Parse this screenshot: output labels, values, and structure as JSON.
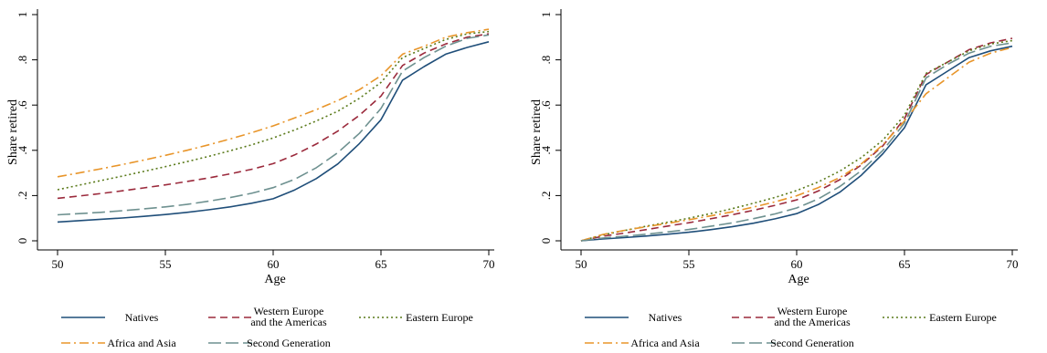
{
  "colors": {
    "natives": "#1f4e79",
    "western_europe": "#9b2a3c",
    "eastern_europe": "#5a7a1a",
    "africa_asia": "#e8952a",
    "second_gen": "#6e9190"
  },
  "chart_data": [
    {
      "type": "line",
      "xlabel": "Age",
      "ylabel": "Share retired",
      "xlim": [
        50,
        70
      ],
      "ylim": [
        0,
        1
      ],
      "xticks": [
        "50",
        "55",
        "60",
        "65",
        "70"
      ],
      "yticks": [
        "0",
        ".2",
        ".4",
        ".6",
        ".8",
        "1"
      ],
      "legend_position": "bottom",
      "x": [
        50,
        51,
        52,
        53,
        54,
        55,
        56,
        57,
        58,
        59,
        60,
        61,
        62,
        63,
        64,
        65,
        66,
        67,
        68,
        69,
        70
      ],
      "series": [
        {
          "key": "natives",
          "name": "Natives",
          "dash": "",
          "values": [
            0.083,
            0.089,
            0.095,
            0.101,
            0.108,
            0.116,
            0.126,
            0.137,
            0.15,
            0.166,
            0.186,
            0.225,
            0.275,
            0.34,
            0.43,
            0.535,
            0.71,
            0.77,
            0.825,
            0.855,
            0.88
          ]
        },
        {
          "key": "western_europe",
          "name": "Western Europe|and the Americas",
          "dash": "8,5",
          "values": [
            0.188,
            0.198,
            0.209,
            0.221,
            0.234,
            0.247,
            0.262,
            0.278,
            0.296,
            0.316,
            0.341,
            0.38,
            0.428,
            0.485,
            0.555,
            0.64,
            0.775,
            0.83,
            0.87,
            0.9,
            0.915
          ]
        },
        {
          "key": "eastern_europe",
          "name": "Eastern Europe",
          "dash": "2,3",
          "values": [
            0.226,
            0.246,
            0.266,
            0.286,
            0.307,
            0.328,
            0.35,
            0.373,
            0.398,
            0.424,
            0.455,
            0.49,
            0.53,
            0.573,
            0.63,
            0.7,
            0.81,
            0.85,
            0.89,
            0.915,
            0.925
          ]
        },
        {
          "key": "africa_asia",
          "name": "Africa and Asia",
          "dash": "10,4,2,4",
          "values": [
            0.283,
            0.3,
            0.318,
            0.337,
            0.357,
            0.378,
            0.4,
            0.424,
            0.45,
            0.478,
            0.508,
            0.543,
            0.58,
            0.62,
            0.668,
            0.73,
            0.825,
            0.86,
            0.9,
            0.92,
            0.935
          ]
        },
        {
          "key": "second_gen",
          "name": "Second Generation",
          "dash": "14,5",
          "values": [
            0.115,
            0.12,
            0.126,
            0.133,
            0.141,
            0.15,
            0.161,
            0.175,
            0.191,
            0.21,
            0.235,
            0.272,
            0.323,
            0.39,
            0.475,
            0.585,
            0.75,
            0.81,
            0.86,
            0.895,
            0.91
          ]
        }
      ]
    },
    {
      "type": "line",
      "xlabel": "Age",
      "ylabel": "Share retired",
      "xlim": [
        50,
        70
      ],
      "ylim": [
        0,
        1
      ],
      "xticks": [
        "50",
        "55",
        "60",
        "65",
        "70"
      ],
      "yticks": [
        "0",
        ".2",
        ".4",
        ".6",
        ".8",
        "1"
      ],
      "legend_position": "bottom",
      "x": [
        50,
        51,
        52,
        53,
        54,
        55,
        56,
        57,
        58,
        59,
        60,
        61,
        62,
        63,
        64,
        65,
        66,
        67,
        68,
        69,
        70
      ],
      "series": [
        {
          "key": "natives",
          "name": "Natives",
          "dash": "",
          "values": [
            0.0,
            0.008,
            0.014,
            0.021,
            0.029,
            0.038,
            0.049,
            0.062,
            0.078,
            0.097,
            0.12,
            0.16,
            0.215,
            0.29,
            0.385,
            0.5,
            0.69,
            0.75,
            0.81,
            0.84,
            0.86
          ]
        },
        {
          "key": "western_europe",
          "name": "Western Europe|and the Americas",
          "dash": "8,5",
          "values": [
            0.0,
            0.02,
            0.034,
            0.049,
            0.065,
            0.08,
            0.097,
            0.115,
            0.135,
            0.157,
            0.181,
            0.22,
            0.27,
            0.335,
            0.42,
            0.54,
            0.735,
            0.79,
            0.845,
            0.875,
            0.895
          ]
        },
        {
          "key": "eastern_europe",
          "name": "Eastern Europe",
          "dash": "2,3",
          "values": [
            0.0,
            0.026,
            0.045,
            0.064,
            0.082,
            0.1,
            0.12,
            0.142,
            0.166,
            0.192,
            0.222,
            0.26,
            0.308,
            0.368,
            0.445,
            0.555,
            0.74,
            0.79,
            0.84,
            0.87,
            0.885
          ]
        },
        {
          "key": "africa_asia",
          "name": "Africa and Asia",
          "dash": "10,4,2,4",
          "values": [
            0.0,
            0.028,
            0.046,
            0.062,
            0.077,
            0.093,
            0.11,
            0.128,
            0.149,
            0.172,
            0.199,
            0.235,
            0.28,
            0.34,
            0.425,
            0.53,
            0.65,
            0.72,
            0.79,
            0.83,
            0.855
          ]
        },
        {
          "key": "second_gen",
          "name": "Second Generation",
          "dash": "14,5",
          "values": [
            0.0,
            0.012,
            0.02,
            0.029,
            0.039,
            0.05,
            0.064,
            0.079,
            0.098,
            0.119,
            0.145,
            0.185,
            0.24,
            0.31,
            0.4,
            0.52,
            0.72,
            0.78,
            0.83,
            0.86,
            0.875
          ]
        }
      ]
    }
  ]
}
